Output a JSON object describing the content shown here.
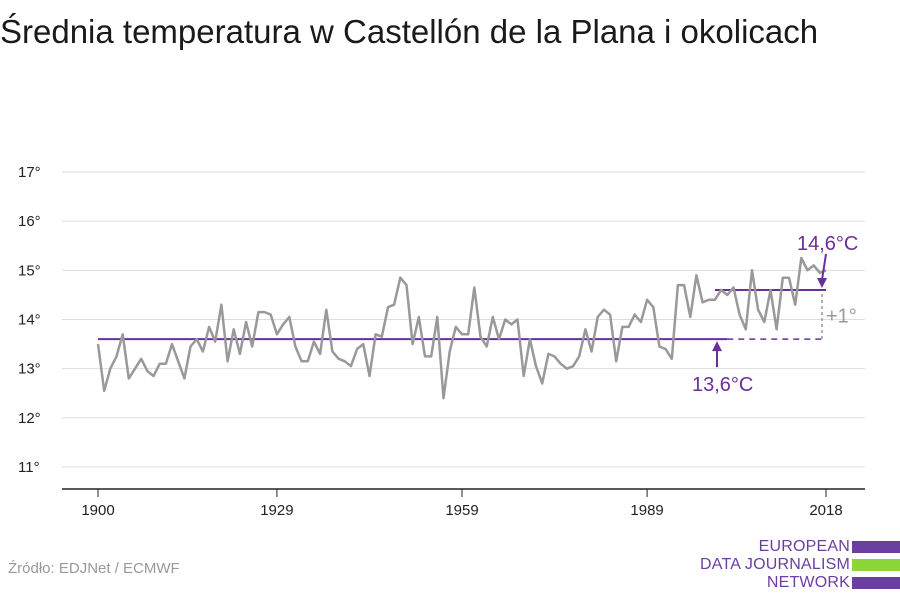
{
  "title": "Średnia temperatura w Castellón de la Plana i okolicach",
  "source": "Źródło: EDJNet / ECMWF",
  "logo": {
    "line1": "EUROPEAN",
    "line2": "DATA JOURNALISM",
    "line3": "NETWORK",
    "colors": {
      "purple": "#6b3fa0",
      "green": "#8cd63a"
    }
  },
  "colors": {
    "series": "#999999",
    "accent": "#6b2f9a",
    "grid": "#dddddd",
    "axis": "#222222"
  },
  "chart_data": {
    "type": "line",
    "xlim": [
      1900,
      2018
    ],
    "ylim": [
      11,
      17
    ],
    "x_ticks": [
      1900,
      1929,
      1959,
      1989,
      2018
    ],
    "x_tick_labels": [
      "1900",
      "1929",
      "1959",
      "1989",
      "2018"
    ],
    "y_ticks": [
      11,
      12,
      13,
      14,
      15,
      16,
      17
    ],
    "y_tick_labels": [
      "11°",
      "12°",
      "13°",
      "14°",
      "15°",
      "16°",
      "17°"
    ],
    "grid": true,
    "series": [
      {
        "x": [
          1900,
          1901,
          1902,
          1903,
          1904,
          1905,
          1906,
          1907,
          1908,
          1909,
          1910,
          1911,
          1912,
          1913,
          1914,
          1915,
          1916,
          1917,
          1918,
          1919,
          1920,
          1921,
          1922,
          1923,
          1924,
          1925,
          1926,
          1927,
          1928,
          1929,
          1930,
          1931,
          1932,
          1933,
          1934,
          1935,
          1936,
          1937,
          1938,
          1939,
          1940,
          1941,
          1942,
          1943,
          1944,
          1945,
          1946,
          1947,
          1948,
          1949,
          1950,
          1951,
          1952,
          1953,
          1954,
          1955,
          1956,
          1957,
          1958,
          1959,
          1960,
          1961,
          1962,
          1963,
          1964,
          1965,
          1966,
          1967,
          1968,
          1969,
          1970,
          1971,
          1972,
          1973,
          1974,
          1975,
          1976,
          1977,
          1978,
          1979,
          1980,
          1981,
          1982,
          1983,
          1984,
          1985,
          1986,
          1987,
          1988,
          1989,
          1990,
          1991,
          1992,
          1993,
          1994,
          1995,
          1996,
          1997,
          1998,
          1999,
          2000,
          2001,
          2002,
          2003,
          2004,
          2005,
          2006,
          2007,
          2008,
          2009,
          2010,
          2011,
          2012,
          2013,
          2014,
          2015,
          2016,
          2017,
          2018
        ],
        "values": [
          13.5,
          12.55,
          13.0,
          13.25,
          13.7,
          12.8,
          13.0,
          13.2,
          12.95,
          12.85,
          13.1,
          13.1,
          13.5,
          13.15,
          12.8,
          13.45,
          13.6,
          13.35,
          13.85,
          13.55,
          14.3,
          13.15,
          13.8,
          13.3,
          13.95,
          13.45,
          14.15,
          14.15,
          14.1,
          13.7,
          13.9,
          14.05,
          13.45,
          13.15,
          13.15,
          13.55,
          13.3,
          14.2,
          13.35,
          13.2,
          13.15,
          13.05,
          13.4,
          13.5,
          12.85,
          13.7,
          13.65,
          14.25,
          14.3,
          14.85,
          14.7,
          13.5,
          14.05,
          13.25,
          13.25,
          14.05,
          12.4,
          13.35,
          13.85,
          13.7,
          13.7,
          14.65,
          13.65,
          13.45,
          14.05,
          13.6,
          14.0,
          13.9,
          14.0,
          12.85,
          13.6,
          13.05,
          12.7,
          13.3,
          13.25,
          13.1,
          13.0,
          13.05,
          13.25,
          13.8,
          13.35,
          14.05,
          14.2,
          14.1,
          13.15,
          13.85,
          13.85,
          14.1,
          13.95,
          14.4,
          14.25,
          13.45,
          13.4,
          13.2,
          14.7,
          14.7,
          14.05,
          14.9,
          14.35,
          14.4,
          14.4,
          14.6,
          14.5,
          14.65,
          14.1,
          13.8,
          15.0,
          14.2,
          13.95,
          14.6,
          13.8,
          14.85,
          14.85,
          14.3,
          15.25,
          15.0,
          15.1,
          14.95,
          15.0
        ]
      }
    ],
    "annotations": {
      "baseline_label": "13,6°C",
      "baseline_value": 13.6,
      "baseline_solid_x": [
        1900,
        2002
      ],
      "baseline_dashed_x": [
        2002,
        2018
      ],
      "recent_label": "14,6°C",
      "recent_value": 14.6,
      "recent_x": [
        2000,
        2018
      ],
      "delta_label": "+1°"
    }
  }
}
